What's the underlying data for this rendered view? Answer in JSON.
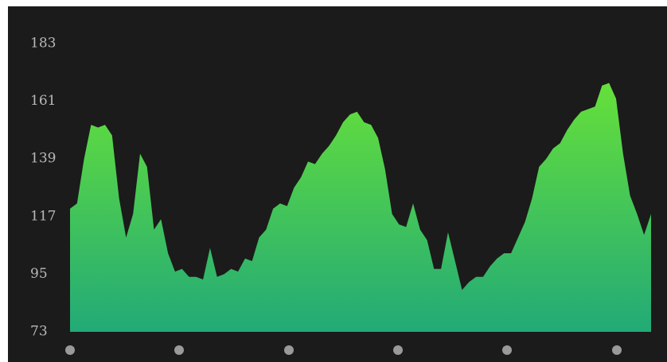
{
  "chart_data": {
    "type": "area",
    "values": [
      120,
      122,
      139,
      152,
      151,
      152,
      148,
      124,
      109,
      118,
      141,
      136,
      112,
      116,
      103,
      96,
      97,
      94,
      94,
      93,
      105,
      94,
      95,
      97,
      96,
      101,
      100,
      109,
      112,
      120,
      122,
      121,
      128,
      132,
      138,
      137,
      141,
      144,
      148,
      153,
      156,
      157,
      153,
      152,
      147,
      135,
      118,
      114,
      113,
      122,
      112,
      108,
      97,
      97,
      111,
      100,
      89,
      92,
      94,
      94,
      98,
      101,
      103,
      103,
      109,
      115,
      124,
      136,
      139,
      143,
      145,
      150,
      154,
      157,
      158,
      159,
      167,
      168,
      162,
      141,
      125,
      118,
      110,
      118
    ],
    "colors": [
      "#66e03a",
      "#22aa77"
    ],
    "ylim": [
      73,
      183
    ],
    "yticks": [
      73,
      95,
      117,
      139,
      161,
      183
    ]
  }
}
